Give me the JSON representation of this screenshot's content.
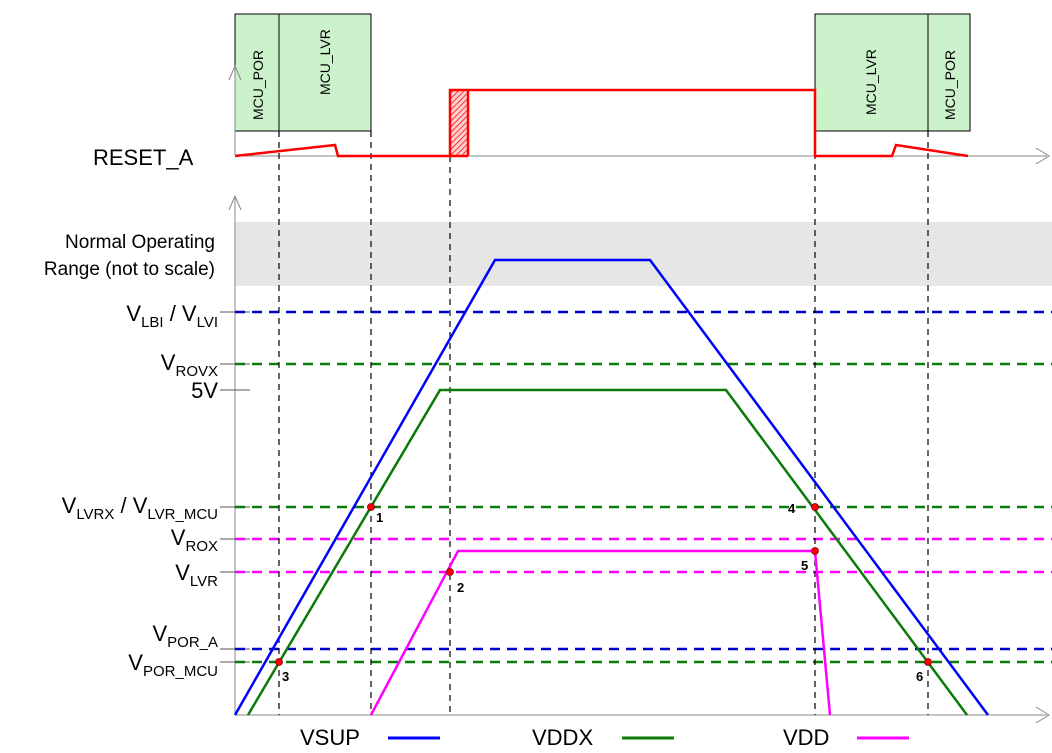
{
  "reset_signal": "RESET_A",
  "boxes": {
    "left_por": "MCU_POR",
    "left_lvr": "MCU_LVR",
    "right_lvr": "MCU_LVR",
    "right_por": "MCU_POR"
  },
  "normal_range": {
    "line1": "Normal Operating",
    "line2": "Range (not to scale)"
  },
  "levels": {
    "lbi_main": "V",
    "lbi_sub": "LBI",
    "lbi_sep": " / V",
    "lvi_sub": "LVI",
    "rovx_main": "V",
    "rovx_sub": "ROVX",
    "five_v": "5V",
    "lvrx_main": "V",
    "lvrx_sub": "LVRX",
    "lvrx_sep": " / V",
    "lvrmcu_sub": "LVR_MCU",
    "rox_main": "V",
    "rox_sub": "ROX",
    "lvr_main": "V",
    "lvr_sub": "LVR",
    "pora_main": "V",
    "pora_sub": "POR_A",
    "pormcu_main": "V",
    "pormcu_sub": "POR_MCU"
  },
  "points": [
    "1",
    "2",
    "3",
    "4",
    "5",
    "6"
  ],
  "legend": {
    "vsup": "VSUP",
    "vddx": "VDDX",
    "vdd": "VDD"
  },
  "colors": {
    "vsup": "#0000ff",
    "vddx": "#0a7a0a",
    "vdd": "#ff00ff",
    "reset": "#ff0000",
    "box_fill": "#ccf2cc",
    "normal_fill": "#e6e6e6",
    "point": "#ff0000"
  }
}
